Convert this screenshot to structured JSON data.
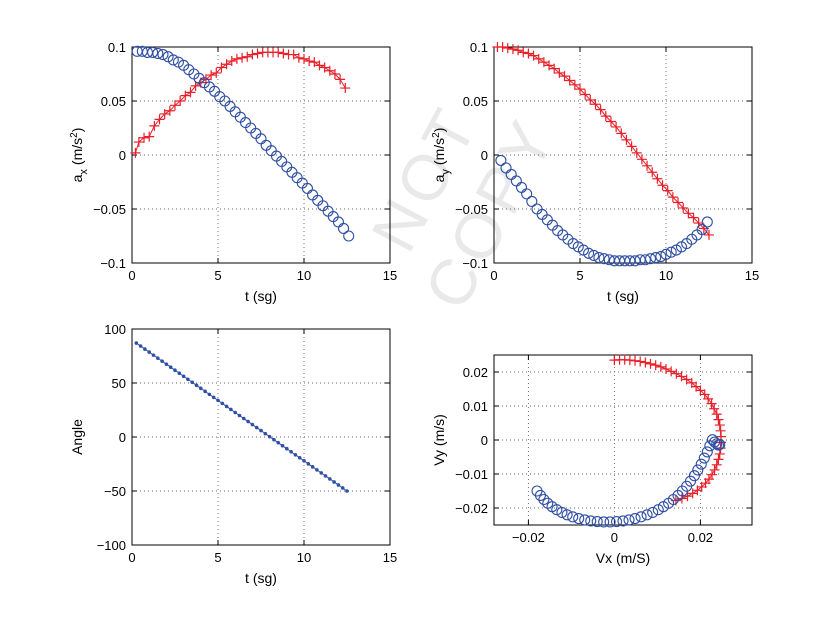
{
  "watermark": "NOT COPY",
  "colors": {
    "red": "#e8202a",
    "blue": "#2f4fa3",
    "dots": "#3050a8",
    "grid": "#666666",
    "axis": "#000000"
  },
  "chart_data": [
    {
      "type": "scatter",
      "xlabel": "t (sg)",
      "ylabel_main": "a",
      "ylabel_sub": "x",
      "ylabel_unit": "(m/s",
      "ylabel_exp": "2",
      "ylabel_close": ")",
      "xlim": [
        0,
        15
      ],
      "ylim": [
        -0.1,
        0.1
      ],
      "xticks": [
        "0",
        "5",
        "10",
        "15"
      ],
      "yticks": [
        "−0.1",
        "−0.05",
        "0",
        "0.05",
        "0.1"
      ],
      "grid": true,
      "series": [
        {
          "marker": "plus",
          "color": "red",
          "x": [
            0.2,
            0.4,
            0.7,
            1.0,
            1.3,
            1.6,
            1.9,
            2.2,
            2.5,
            2.8,
            3.1,
            3.4,
            3.7,
            4.0,
            4.3,
            4.6,
            4.9,
            5.2,
            5.5,
            5.8,
            6.1,
            6.4,
            6.7,
            7.0,
            7.3,
            7.6,
            7.9,
            8.2,
            8.5,
            8.8,
            9.1,
            9.4,
            9.7,
            10.0,
            10.3,
            10.6,
            10.9,
            11.2,
            11.5,
            11.8,
            12.1,
            12.4
          ],
          "y": [
            0.002,
            0.012,
            0.016,
            0.017,
            0.027,
            0.033,
            0.038,
            0.041,
            0.046,
            0.05,
            0.055,
            0.058,
            0.064,
            0.067,
            0.07,
            0.074,
            0.076,
            0.081,
            0.084,
            0.087,
            0.089,
            0.09,
            0.091,
            0.093,
            0.094,
            0.095,
            0.095,
            0.095,
            0.095,
            0.094,
            0.093,
            0.093,
            0.09,
            0.089,
            0.087,
            0.086,
            0.083,
            0.081,
            0.078,
            0.075,
            0.07,
            0.062
          ]
        },
        {
          "marker": "circle",
          "color": "blue",
          "x": [
            0.3,
            0.6,
            0.9,
            1.2,
            1.5,
            1.8,
            2.1,
            2.4,
            2.7,
            3.0,
            3.3,
            3.6,
            3.9,
            4.2,
            4.5,
            4.8,
            5.1,
            5.4,
            5.7,
            6.0,
            6.3,
            6.6,
            6.9,
            7.2,
            7.5,
            7.8,
            8.1,
            8.4,
            8.7,
            9.0,
            9.3,
            9.6,
            9.9,
            10.2,
            10.5,
            10.8,
            11.1,
            11.4,
            11.7,
            12.0,
            12.3,
            12.6
          ],
          "y": [
            0.096,
            0.096,
            0.095,
            0.095,
            0.094,
            0.093,
            0.091,
            0.088,
            0.086,
            0.083,
            0.079,
            0.075,
            0.071,
            0.067,
            0.063,
            0.059,
            0.054,
            0.05,
            0.045,
            0.04,
            0.035,
            0.03,
            0.025,
            0.02,
            0.015,
            0.009,
            0.004,
            -0.001,
            -0.006,
            -0.011,
            -0.016,
            -0.021,
            -0.026,
            -0.031,
            -0.037,
            -0.042,
            -0.047,
            -0.052,
            -0.057,
            -0.062,
            -0.068,
            -0.075
          ]
        }
      ]
    },
    {
      "type": "scatter",
      "xlabel": "t (sg)",
      "ylabel_main": "a",
      "ylabel_sub": "y",
      "ylabel_unit": "(m/s",
      "ylabel_exp": "2",
      "ylabel_close": ")",
      "xlim": [
        0,
        15
      ],
      "ylim": [
        -0.1,
        0.1
      ],
      "xticks": [
        "0",
        "5",
        "10",
        "15"
      ],
      "yticks": [
        "−0.1",
        "−0.05",
        "0",
        "0.05",
        "0.1"
      ],
      "grid": true,
      "series": [
        {
          "marker": "plus",
          "color": "red",
          "x": [
            0.2,
            0.5,
            0.8,
            1.1,
            1.4,
            1.7,
            2.0,
            2.3,
            2.6,
            2.9,
            3.2,
            3.5,
            3.8,
            4.1,
            4.4,
            4.7,
            5.0,
            5.3,
            5.6,
            5.9,
            6.2,
            6.5,
            6.8,
            7.1,
            7.4,
            7.7,
            8.0,
            8.3,
            8.6,
            8.9,
            9.2,
            9.5,
            9.8,
            10.1,
            10.4,
            10.7,
            11.0,
            11.3,
            11.6,
            11.9,
            12.2,
            12.5
          ],
          "y": [
            0.1,
            0.1,
            0.099,
            0.098,
            0.097,
            0.095,
            0.094,
            0.092,
            0.089,
            0.086,
            0.083,
            0.08,
            0.076,
            0.073,
            0.069,
            0.065,
            0.061,
            0.056,
            0.051,
            0.047,
            0.042,
            0.036,
            0.031,
            0.026,
            0.02,
            0.014,
            0.008,
            0.002,
            -0.004,
            -0.01,
            -0.016,
            -0.022,
            -0.028,
            -0.033,
            -0.039,
            -0.044,
            -0.049,
            -0.054,
            -0.058,
            -0.063,
            -0.068,
            -0.074
          ]
        },
        {
          "marker": "circle",
          "color": "blue",
          "x": [
            0.4,
            0.7,
            1.0,
            1.3,
            1.6,
            1.9,
            2.2,
            2.5,
            2.8,
            3.1,
            3.4,
            3.7,
            4.0,
            4.3,
            4.6,
            4.9,
            5.2,
            5.5,
            5.8,
            6.1,
            6.4,
            6.7,
            7.0,
            7.3,
            7.6,
            7.9,
            8.2,
            8.5,
            8.8,
            9.1,
            9.4,
            9.7,
            10.0,
            10.3,
            10.6,
            10.9,
            11.2,
            11.5,
            11.8,
            12.1,
            12.4
          ],
          "y": [
            -0.005,
            -0.012,
            -0.018,
            -0.024,
            -0.03,
            -0.036,
            -0.043,
            -0.05,
            -0.055,
            -0.06,
            -0.065,
            -0.07,
            -0.074,
            -0.078,
            -0.082,
            -0.085,
            -0.088,
            -0.091,
            -0.093,
            -0.095,
            -0.096,
            -0.097,
            -0.098,
            -0.098,
            -0.098,
            -0.098,
            -0.098,
            -0.097,
            -0.097,
            -0.096,
            -0.095,
            -0.094,
            -0.092,
            -0.09,
            -0.088,
            -0.085,
            -0.082,
            -0.078,
            -0.074,
            -0.069,
            -0.062
          ]
        }
      ]
    },
    {
      "type": "line",
      "xlabel": "t (sg)",
      "ylabel_main": "Angle",
      "xlim": [
        0,
        15
      ],
      "ylim": [
        -100,
        100
      ],
      "xticks": [
        "0",
        "5",
        "10",
        "15"
      ],
      "yticks": [
        "−100",
        "−50",
        "0",
        "50",
        "100"
      ],
      "grid": true,
      "series": [
        {
          "marker": "dot",
          "color": "dots",
          "x_start": 0.25,
          "x_end": 12.5,
          "y_start": 87,
          "y_end": -50,
          "count": 50
        }
      ]
    },
    {
      "type": "scatter",
      "xlabel": "Vx (m/S)",
      "ylabel_main": "Vy (m/s)",
      "xlim": [
        -0.028,
        0.032
      ],
      "ylim": [
        -0.025,
        0.025
      ],
      "xticks": [
        "−0.02",
        "0",
        "0.02"
      ],
      "xtick_values": [
        -0.02,
        0,
        0.02
      ],
      "yticks": [
        "−0.02",
        "−0.01",
        "0",
        "0.01",
        "0.02"
      ],
      "ytick_values": [
        -0.02,
        -0.01,
        0,
        0.01,
        0.02
      ],
      "grid": true,
      "series": [
        {
          "marker": "plus",
          "color": "red",
          "x": [
            0,
            0.0012,
            0.0024,
            0.0036,
            0.0048,
            0.006,
            0.0072,
            0.0084,
            0.0096,
            0.0108,
            0.012,
            0.0132,
            0.0144,
            0.0156,
            0.0168,
            0.018,
            0.019,
            0.02,
            0.021,
            0.0218,
            0.0226,
            0.0232,
            0.0238,
            0.0242,
            0.0245,
            0.0247,
            0.0248,
            0.0248,
            0.0247,
            0.0245,
            0.0242,
            0.0238,
            0.0233,
            0.0227,
            0.022,
            0.0212,
            0.0203,
            0.0193,
            0.0182,
            0.017,
            0.0157,
            0.0143
          ],
          "y": [
            0.0235,
            0.0236,
            0.0236,
            0.0235,
            0.0233,
            0.0231,
            0.0228,
            0.0224,
            0.022,
            0.0215,
            0.0209,
            0.0202,
            0.0195,
            0.0187,
            0.0178,
            0.0168,
            0.0157,
            0.0146,
            0.0134,
            0.0121,
            0.0107,
            0.0092,
            0.0076,
            0.006,
            0.0044,
            0.0027,
            0.001,
            -0.0007,
            -0.0024,
            -0.0041,
            -0.0057,
            -0.0073,
            -0.0088,
            -0.0102,
            -0.0115,
            -0.0127,
            -0.0138,
            -0.0148,
            -0.0157,
            -0.0165,
            -0.0172,
            -0.0178
          ]
        },
        {
          "marker": "circle",
          "color": "blue",
          "x": [
            -0.018,
            -0.0172,
            -0.0164,
            -0.0155,
            -0.0145,
            -0.0134,
            -0.0122,
            -0.011,
            -0.0097,
            -0.0083,
            -0.0069,
            -0.0055,
            -0.004,
            -0.0025,
            -0.001,
            0.0005,
            0.002,
            0.0034,
            0.0048,
            0.0062,
            0.0076,
            0.0089,
            0.0102,
            0.0114,
            0.0126,
            0.0137,
            0.0148,
            0.0158,
            0.0168,
            0.0177,
            0.0186,
            0.0194,
            0.0202,
            0.0209,
            0.0216,
            0.0222,
            0.0228,
            0.0233,
            0.0238,
            0.0242,
            0.0245
          ],
          "y": [
            -0.015,
            -0.0163,
            -0.0175,
            -0.0186,
            -0.0196,
            -0.0205,
            -0.0213,
            -0.022,
            -0.0226,
            -0.0231,
            -0.0235,
            -0.0238,
            -0.024,
            -0.0241,
            -0.0241,
            -0.024,
            -0.0238,
            -0.0235,
            -0.0231,
            -0.0226,
            -0.022,
            -0.0213,
            -0.0205,
            -0.0196,
            -0.0186,
            -0.0175,
            -0.0163,
            -0.015,
            -0.0136,
            -0.0121,
            -0.0105,
            -0.0088,
            -0.0071,
            -0.0053,
            -0.0035,
            -0.0017,
            0.0001,
            -0.0006,
            -0.0011,
            -0.0015,
            -0.0013
          ]
        }
      ]
    }
  ]
}
